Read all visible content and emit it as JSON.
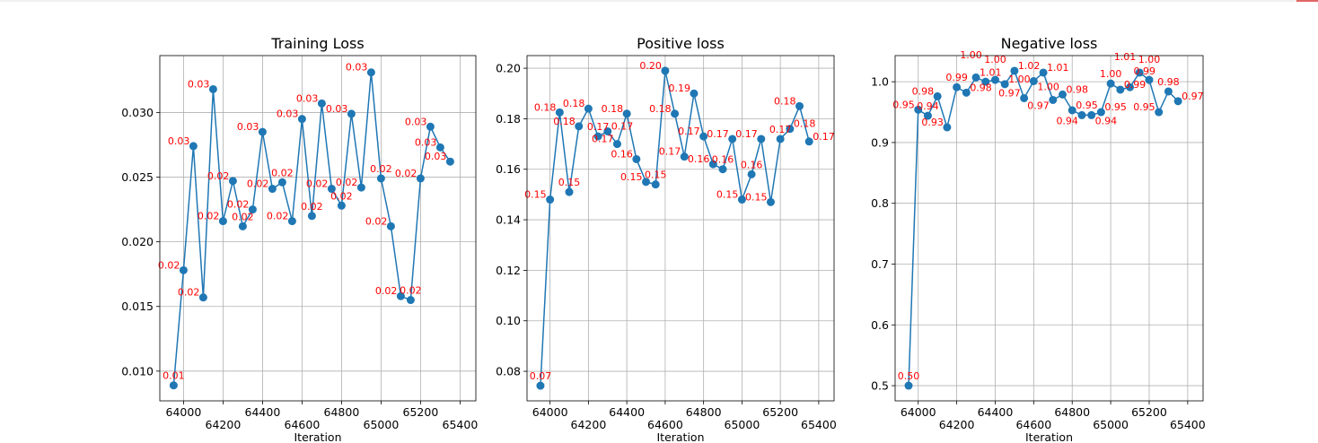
{
  "colors": {
    "line": "#1f77b4",
    "label": "#ff0000",
    "grid": "#b0b0b0"
  },
  "chart_data": [
    {
      "type": "line",
      "title": "Training Loss",
      "xlabel": "Iteration",
      "ylabel": "",
      "grid": true,
      "xlim": [
        63880,
        65480
      ],
      "ylim": [
        0.0077,
        0.0344
      ],
      "xticks": [
        64000,
        64200,
        64400,
        64600,
        64800,
        65000,
        65200,
        65400
      ],
      "xtick_labels": [
        "64000",
        "64200",
        "64400",
        "64600",
        "64800",
        "65000",
        "65200",
        "65400"
      ],
      "yticks": [
        0.01,
        0.015,
        0.02,
        0.025,
        0.03
      ],
      "ytick_labels": [
        "0.010",
        "0.015",
        "0.020",
        "0.025",
        "0.030"
      ],
      "x": [
        63950,
        64000,
        64050,
        64100,
        64150,
        64200,
        64250,
        64300,
        64350,
        64400,
        64450,
        64500,
        64550,
        64600,
        64650,
        64700,
        64750,
        64800,
        64850,
        64900,
        64950,
        65000,
        65050,
        65100,
        65150,
        65200,
        65250,
        65300,
        65350
      ],
      "y": [
        0.0089,
        0.0178,
        0.0274,
        0.0157,
        0.0318,
        0.0216,
        0.0247,
        0.0212,
        0.0225,
        0.0285,
        0.0241,
        0.0246,
        0.0216,
        0.0295,
        0.022,
        0.0307,
        0.0241,
        0.0228,
        0.0299,
        0.0242,
        0.0331,
        0.0249,
        0.0212,
        0.0158,
        0.0155,
        0.0249,
        0.0289,
        0.0273,
        0.0262
      ]
    },
    {
      "type": "line",
      "title": "Positive loss",
      "xlabel": "Iteration",
      "ylabel": "",
      "grid": true,
      "xlim": [
        63880,
        65480
      ],
      "ylim": [
        0.0683,
        0.205
      ],
      "xticks": [
        64000,
        64200,
        64400,
        64600,
        64800,
        65000,
        65200,
        65400
      ],
      "xtick_labels": [
        "64000",
        "64200",
        "64400",
        "64600",
        "64800",
        "65000",
        "65200",
        "65400"
      ],
      "yticks": [
        0.08,
        0.1,
        0.12,
        0.14,
        0.16,
        0.18,
        0.2
      ],
      "ytick_labels": [
        "0.08",
        "0.10",
        "0.12",
        "0.14",
        "0.16",
        "0.18",
        "0.20"
      ],
      "x": [
        63950,
        64000,
        64050,
        64100,
        64150,
        64200,
        64250,
        64300,
        64350,
        64400,
        64450,
        64500,
        64550,
        64600,
        64650,
        64700,
        64750,
        64800,
        64850,
        64900,
        64950,
        65000,
        65050,
        65100,
        65150,
        65200,
        65250,
        65300,
        65350
      ],
      "y": [
        0.0743,
        0.148,
        0.1825,
        0.151,
        0.177,
        0.184,
        0.173,
        0.175,
        0.17,
        0.182,
        0.164,
        0.155,
        0.154,
        0.199,
        0.182,
        0.165,
        0.19,
        0.173,
        0.162,
        0.16,
        0.172,
        0.148,
        0.158,
        0.172,
        0.147,
        0.172,
        0.176,
        0.185,
        0.171
      ]
    },
    {
      "type": "line",
      "title": "Negative loss",
      "xlabel": "Iteration",
      "ylabel": "",
      "grid": true,
      "xlim": [
        63880,
        65480
      ],
      "ylim": [
        0.475,
        1.043
      ],
      "xticks": [
        64000,
        64200,
        64400,
        64600,
        64800,
        65000,
        65200,
        65400
      ],
      "xtick_labels": [
        "64000",
        "64200",
        "64400",
        "64600",
        "64800",
        "65000",
        "65200",
        "65400"
      ],
      "yticks": [
        0.5,
        0.6,
        0.7,
        0.8,
        0.9,
        1.0
      ],
      "ytick_labels": [
        "0.5",
        "0.6",
        "0.7",
        "0.8",
        "0.9",
        "1.0"
      ],
      "x": [
        63950,
        64000,
        64050,
        64100,
        64150,
        64200,
        64250,
        64300,
        64350,
        64400,
        64450,
        64500,
        64550,
        64600,
        64650,
        64700,
        64750,
        64800,
        64850,
        64900,
        64950,
        65000,
        65050,
        65100,
        65150,
        65200,
        65250,
        65300,
        65350
      ],
      "y": [
        0.5,
        0.954,
        0.944,
        0.976,
        0.925,
        0.991,
        0.982,
        1.007,
        1.0,
        1.003,
        0.996,
        1.018,
        0.973,
        1.001,
        1.015,
        0.97,
        0.979,
        0.953,
        0.945,
        0.945,
        0.95,
        0.997,
        0.987,
        0.991,
        1.015,
        1.003,
        0.95,
        0.984,
        0.968
      ]
    }
  ]
}
